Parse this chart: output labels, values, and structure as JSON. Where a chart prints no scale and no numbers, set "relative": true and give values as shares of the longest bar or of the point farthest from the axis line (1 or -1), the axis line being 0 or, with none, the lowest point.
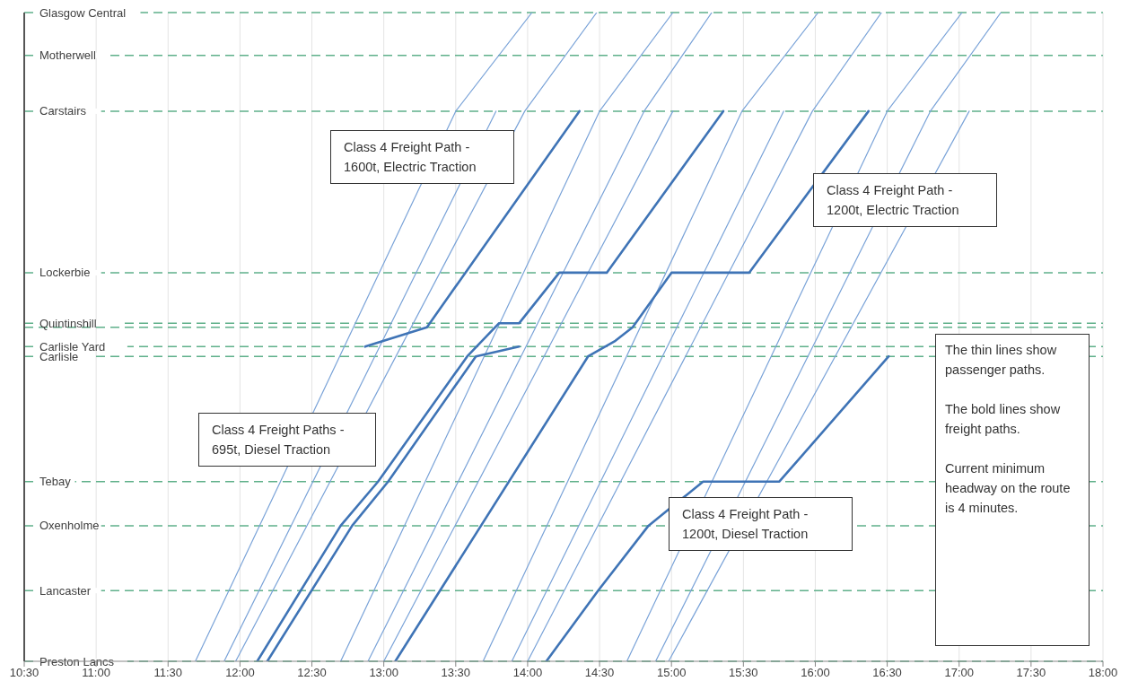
{
  "chart_data": {
    "type": "line",
    "relative": true,
    "xlim": [
      10.5,
      18
    ],
    "xticks": [
      {
        "value": 10.5,
        "label": "10:30"
      },
      {
        "value": 11,
        "label": "11:00"
      },
      {
        "value": 11.5,
        "label": "11:30"
      },
      {
        "value": 12,
        "label": "12:00"
      },
      {
        "value": 12.5,
        "label": "12:30"
      },
      {
        "value": 13,
        "label": "13:00"
      },
      {
        "value": 13.5,
        "label": "13:30"
      },
      {
        "value": 14,
        "label": "14:00"
      },
      {
        "value": 14.5,
        "label": "14:30"
      },
      {
        "value": 15,
        "label": "15:00"
      },
      {
        "value": 15.5,
        "label": "15:30"
      },
      {
        "value": 16,
        "label": "16:00"
      },
      {
        "value": 16.5,
        "label": "16:30"
      },
      {
        "value": 17,
        "label": "17:00"
      },
      {
        "value": 17.5,
        "label": "17:30"
      },
      {
        "value": 18,
        "label": "18:00"
      }
    ],
    "ref_lines": [
      {
        "axis": "y",
        "value": 0,
        "label": "Preston Lancs",
        "color": "#5fb08a",
        "line_style": "dashed"
      },
      {
        "axis": "y",
        "value": 0.109,
        "label": "Lancaster",
        "color": "#5fb08a",
        "line_style": "dashed"
      },
      {
        "axis": "y",
        "value": 0.209,
        "label": "Oxenholme",
        "color": "#5fb08a",
        "line_style": "dashed"
      },
      {
        "axis": "y",
        "value": 0.277,
        "label": "Tebay",
        "color": "#5fb08a",
        "line_style": "dashed"
      },
      {
        "axis": "y",
        "value": 0.47,
        "label": "Carlisle",
        "color": "#5fb08a",
        "line_style": "dashed"
      },
      {
        "axis": "y",
        "value": 0.485,
        "label": "Carlisle Yard",
        "color": "#5fb08a",
        "line_style": "dashed"
      },
      {
        "axis": "y",
        "value": 0.515,
        "color": "#5fb08a",
        "line_style": "dashed"
      },
      {
        "axis": "y",
        "value": 0.521,
        "label": "Quintinshill",
        "color": "#5fb08a",
        "line_style": "dashed"
      },
      {
        "axis": "y",
        "value": 0.599,
        "label": "Lockerbie",
        "color": "#5fb08a",
        "line_style": "dashed"
      },
      {
        "axis": "y",
        "value": 0.848,
        "label": "Carstairs",
        "color": "#5fb08a",
        "line_style": "dashed"
      },
      {
        "axis": "y",
        "value": 0.934,
        "label": "Motherwell",
        "color": "#5fb08a",
        "line_style": "dashed"
      },
      {
        "axis": "y",
        "value": 1,
        "label": "Glasgow Central",
        "color": "#5fb08a",
        "line_style": "dashed"
      }
    ],
    "grid": "x",
    "marker": "none",
    "line_style": "solid",
    "series": [
      {
        "color": "#7aa3d8",
        "x": [
          11.69,
          13.5,
          14.03
        ],
        "values": [
          0,
          0.848,
          1
        ]
      },
      {
        "color": "#7aa3d8",
        "x": [
          11.89,
          13.78
        ],
        "values": [
          0,
          0.848
        ]
      },
      {
        "color": "#7aa3d8",
        "x": [
          11.97,
          13.98,
          14.48
        ],
        "values": [
          0,
          0.848,
          1
        ]
      },
      {
        "color": "#7aa3d8",
        "x": [
          12.7,
          14.5,
          15.01
        ],
        "values": [
          0,
          0.848,
          1
        ]
      },
      {
        "color": "#7aa3d8",
        "x": [
          12.89,
          14.81,
          15.28
        ],
        "values": [
          0,
          0.848,
          1
        ]
      },
      {
        "color": "#7aa3d8",
        "x": [
          13.0,
          15.01
        ],
        "values": [
          0,
          0.848
        ]
      },
      {
        "color": "#7aa3d8",
        "x": [
          13.69,
          15.49,
          16.02
        ],
        "values": [
          0,
          0.848,
          1
        ]
      },
      {
        "color": "#7aa3d8",
        "x": [
          13.89,
          15.78
        ],
        "values": [
          0,
          0.848
        ]
      },
      {
        "color": "#7aa3d8",
        "x": [
          14.0,
          15.98,
          16.46
        ],
        "values": [
          0,
          0.848,
          1
        ]
      },
      {
        "color": "#7aa3d8",
        "x": [
          14.69,
          16.5,
          17.02
        ],
        "values": [
          0,
          0.848,
          1
        ]
      },
      {
        "color": "#7aa3d8",
        "x": [
          14.89,
          16.8,
          17.29
        ],
        "values": [
          0,
          0.848,
          1
        ]
      },
      {
        "color": "#7aa3d8",
        "x": [
          14.98,
          17.07
        ],
        "values": [
          0,
          0.848
        ]
      },
      {
        "color": "#3f74b6",
        "x": [
          12.87,
          13.3,
          14.36
        ],
        "values": [
          0.485,
          0.515,
          0.848
        ]
      },
      {
        "color": "#3f74b6",
        "x": [
          12.12,
          12.7,
          12.96,
          13.58,
          13.8,
          13.94,
          14.22,
          14.55,
          15.36
        ],
        "values": [
          0,
          0.209,
          0.277,
          0.47,
          0.521,
          0.521,
          0.599,
          0.599,
          0.848
        ]
      },
      {
        "color": "#3f74b6",
        "x": [
          12.19,
          12.78,
          13.03,
          13.64,
          13.94
        ],
        "values": [
          0,
          0.209,
          0.277,
          0.47,
          0.485
        ]
      },
      {
        "color": "#3f74b6",
        "x": [
          13.08,
          14.42,
          14.61,
          14.73,
          15.0,
          15.54,
          16.37
        ],
        "values": [
          0,
          0.47,
          0.494,
          0.515,
          0.599,
          0.599,
          0.848
        ]
      },
      {
        "color": "#3f74b6",
        "x": [
          14.13,
          14.49,
          14.84,
          14.98,
          15.22,
          15.75,
          16.51
        ],
        "values": [
          0,
          0.109,
          0.209,
          0.234,
          0.277,
          0.277,
          0.47
        ]
      }
    ],
    "annotations": [
      "Class 4 Freight Path - 1600t, Electric Traction",
      "Class 4 Freight Path - 1200t, Electric Traction",
      "Class 4 Freight Paths - 695t, Diesel Traction",
      "Class 4 Freight Path - 1200t, Diesel Traction",
      "The thin lines show passenger paths.\n\nThe bold lines show freight paths.\n\nCurrent minimum headway on the route is 4 minutes."
    ]
  }
}
